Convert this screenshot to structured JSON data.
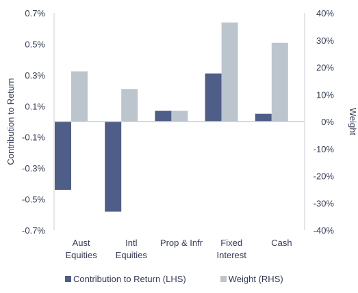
{
  "chart_data": {
    "type": "bar",
    "categories": [
      [
        "Aust",
        "Equities"
      ],
      [
        "Intl",
        "Equities"
      ],
      [
        "Prop & Infr"
      ],
      [
        "Fixed",
        "Interest"
      ],
      [
        "Cash"
      ]
    ],
    "series": [
      {
        "name": "Contribution to Return (LHS)",
        "axis": "left",
        "color": "#4e5e88",
        "values": [
          -0.44,
          -0.58,
          0.07,
          0.31,
          0.05
        ]
      },
      {
        "name": "Weight (RHS)",
        "axis": "right",
        "color": "#bcc5ce",
        "values": [
          18.5,
          12,
          4,
          36.5,
          29
        ]
      }
    ],
    "ylabel_left": "Contribution to Return",
    "ylabel_right": "Weight",
    "ylim_left": [
      -0.7,
      0.7
    ],
    "ylim_right": [
      -40,
      40
    ],
    "yticks_left": [
      "0.7%",
      "0.5%",
      "0.3%",
      "0.1%",
      "-0.1%",
      "-0.3%",
      "-0.5%",
      "-0.7%"
    ],
    "yticks_right": [
      "40%",
      "30%",
      "20%",
      "10%",
      "0%",
      "-10%",
      "-20%",
      "-30%",
      "-40%"
    ],
    "grid": false,
    "legend_position": "bottom"
  }
}
